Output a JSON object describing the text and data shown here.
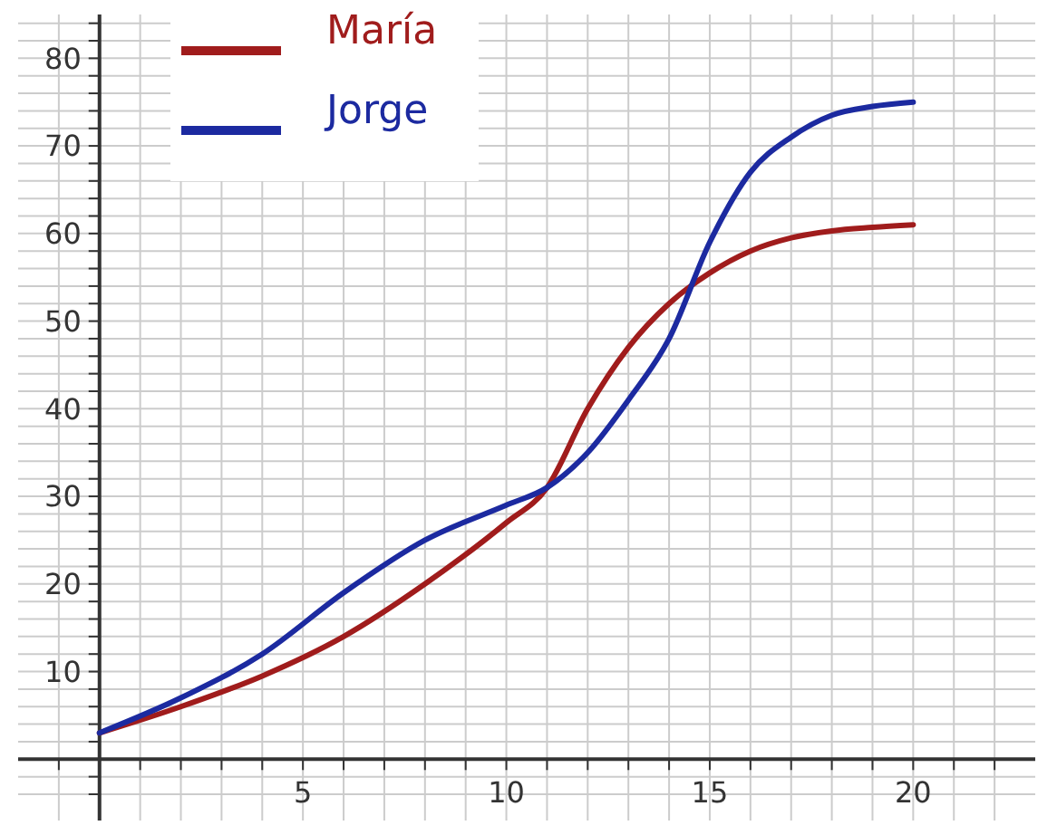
{
  "chart_data": {
    "type": "line",
    "x": [
      0,
      2,
      4,
      6,
      8,
      10,
      11,
      12,
      13,
      14,
      15,
      16,
      17,
      18,
      19,
      20
    ],
    "series": [
      {
        "name": "María",
        "color": "#a01c1c",
        "values": [
          3,
          6,
          9.5,
          14,
          20,
          27,
          31,
          40,
          47,
          52,
          55.5,
          58,
          59.5,
          60.3,
          60.7,
          61
        ]
      },
      {
        "name": "Jorge",
        "color": "#1c2aa0",
        "values": [
          3,
          7,
          12,
          19,
          25,
          29,
          31,
          35,
          41,
          48,
          59,
          67,
          71,
          73.5,
          74.5,
          75
        ]
      }
    ],
    "xlim": [
      -2,
      23
    ],
    "ylim": [
      -7,
      85
    ],
    "xticks": [
      {
        "value": -1,
        "label": null
      },
      {
        "value": 1,
        "label": null
      },
      {
        "value": 2,
        "label": null
      },
      {
        "value": 3,
        "label": null
      },
      {
        "value": 4,
        "label": null
      },
      5,
      {
        "value": 6,
        "label": null
      },
      {
        "value": 7,
        "label": null
      },
      {
        "value": 8,
        "label": null
      },
      {
        "value": 9,
        "label": null
      },
      10,
      {
        "value": 11,
        "label": null
      },
      {
        "value": 12,
        "label": null
      },
      {
        "value": 13,
        "label": null
      },
      {
        "value": 14,
        "label": null
      },
      15,
      {
        "value": 16,
        "label": null
      },
      {
        "value": 17,
        "label": null
      },
      {
        "value": 18,
        "label": null
      },
      {
        "value": 19,
        "label": null
      },
      20,
      {
        "value": 21,
        "label": null
      },
      {
        "value": 22,
        "label": null
      }
    ],
    "yticks": [
      {
        "value": -4,
        "label": null
      },
      {
        "value": -2,
        "label": null
      },
      {
        "value": 2,
        "label": null
      },
      {
        "value": 4,
        "label": null
      },
      {
        "value": 6,
        "label": null
      },
      {
        "value": 8,
        "label": null
      },
      10,
      {
        "value": 12,
        "label": null
      },
      {
        "value": 14,
        "label": null
      },
      {
        "value": 16,
        "label": null
      },
      {
        "value": 18,
        "label": null
      },
      20,
      {
        "value": 22,
        "label": null
      },
      {
        "value": 24,
        "label": null
      },
      {
        "value": 26,
        "label": null
      },
      {
        "value": 28,
        "label": null
      },
      30,
      {
        "value": 32,
        "label": null
      },
      {
        "value": 34,
        "label": null
      },
      {
        "value": 36,
        "label": null
      },
      {
        "value": 38,
        "label": null
      },
      40,
      {
        "value": 42,
        "label": null
      },
      {
        "value": 44,
        "label": null
      },
      {
        "value": 46,
        "label": null
      },
      {
        "value": 48,
        "label": null
      },
      50,
      {
        "value": 52,
        "label": null
      },
      {
        "value": 54,
        "label": null
      },
      {
        "value": 56,
        "label": null
      },
      {
        "value": 58,
        "label": null
      },
      60,
      {
        "value": 62,
        "label": null
      },
      {
        "value": 64,
        "label": null
      },
      {
        "value": 66,
        "label": null
      },
      {
        "value": 68,
        "label": null
      },
      70,
      {
        "value": 72,
        "label": null
      },
      {
        "value": 74,
        "label": null
      },
      {
        "value": 76,
        "label": null
      },
      {
        "value": 78,
        "label": null
      },
      80,
      {
        "value": 82,
        "label": null
      },
      {
        "value": 84,
        "label": null
      }
    ],
    "grid": true,
    "legend": "top left",
    "marker": "none",
    "line_style": "solid"
  }
}
